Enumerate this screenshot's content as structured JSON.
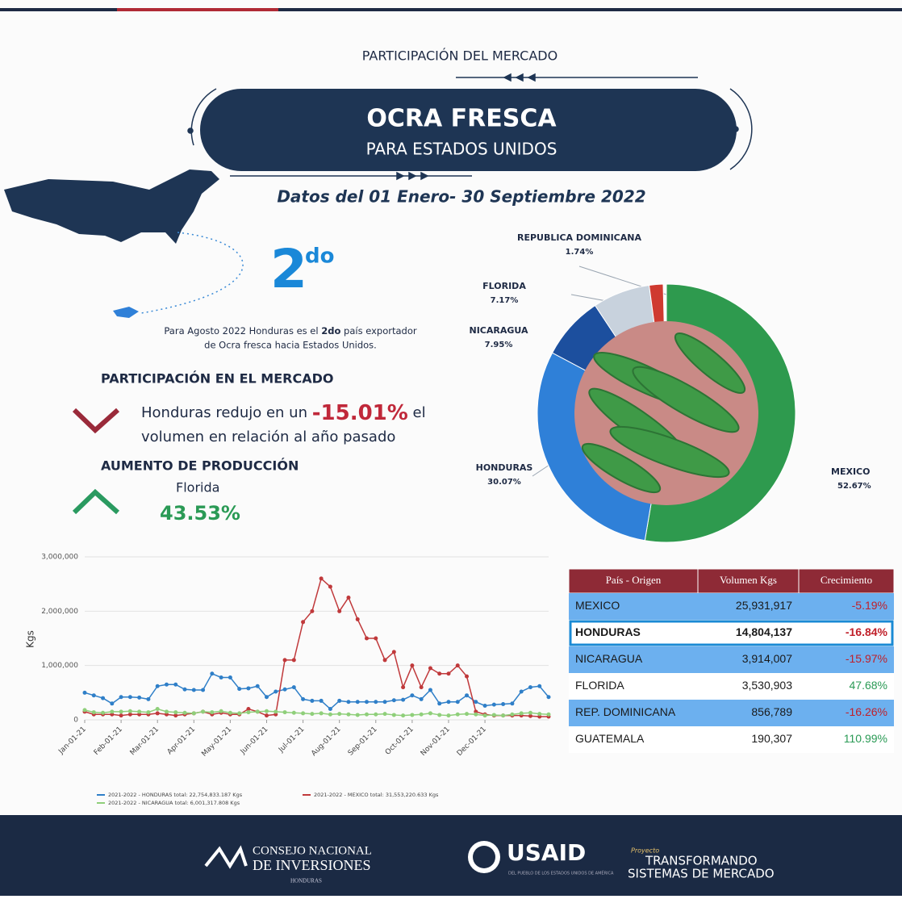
{
  "header": {
    "kicker": "PARTICIPACIÓN DEL MERCADO",
    "title": "OCRA FRESCA",
    "subtitle": "PARA ESTADOS UNIDOS",
    "date_range": "Datos del 01 Enero- 30 Septiembre 2022"
  },
  "rank": {
    "number": "2",
    "suffix": "do",
    "text_before": "Para Agosto 2022 Honduras es el ",
    "text_bold": "2do",
    "text_after": " país exportador",
    "text_line2": "de Ocra fresca hacia Estados Unidos."
  },
  "market_share": {
    "heading": "PARTICIPACIÓN EN EL MERCADO",
    "text_before": "Honduras redujo en un ",
    "change": "-15.01%",
    "text_after": " el",
    "text_line2": "volumen en relación al año pasado"
  },
  "production": {
    "heading": "AUMENTO DE PRODUCCIÓN",
    "label": "Florida",
    "value": "43.53%"
  },
  "chart_data": [
    {
      "type": "pie",
      "donut": true,
      "categories": [
        "MEXICO",
        "HONDURAS",
        "NICARAGUA",
        "FLORIDA",
        "REPUBLICA DOMINICANA"
      ],
      "values": [
        52.67,
        30.07,
        7.95,
        7.17,
        1.74
      ],
      "value_labels": [
        "52.67%",
        "30.07%",
        "7.95%",
        "7.17%",
        "1.74%"
      ],
      "colors": [
        "#2e9a4e",
        "#2f80d8",
        "#1c4f9e",
        "#c8d2dd",
        "#cf3a30"
      ]
    },
    {
      "type": "line",
      "y_label": "Kgs",
      "categories": [
        "Jan-01-21",
        null,
        null,
        null,
        "Feb-01-21",
        null,
        null,
        null,
        "Mar-01-21",
        null,
        null,
        null,
        "Apr-01-21",
        null,
        null,
        null,
        "May-01-21",
        null,
        null,
        null,
        "Jun-01-21",
        null,
        null,
        null,
        "Jul-01-21",
        null,
        null,
        null,
        "Aug-01-21",
        null,
        null,
        null,
        "Sep-01-21",
        null,
        null,
        null,
        "Oct-01-21",
        null,
        null,
        null,
        "Nov-01-21",
        null,
        null,
        null,
        "Dec-01-21",
        null,
        null,
        null,
        null,
        null,
        null,
        null
      ],
      "ylim": [
        0,
        3000000
      ],
      "yticks": [
        0,
        {
          "value": 1000000,
          "label": "1,000,000"
        },
        {
          "value": 2000000,
          "label": "2,000,000"
        },
        {
          "value": 3000000,
          "label": "3,000,000"
        }
      ],
      "grid": true,
      "series": [
        {
          "name": "2021-2022 - HONDURAS total: 22,754,833.187 Kgs",
          "color": "#2f7fc8",
          "values": [
            500000,
            450000,
            400000,
            300000,
            420000,
            420000,
            410000,
            380000,
            620000,
            650000,
            650000,
            560000,
            550000,
            550000,
            850000,
            780000,
            780000,
            570000,
            580000,
            620000,
            420000,
            520000,
            560000,
            600000,
            380000,
            350000,
            350000,
            200000,
            350000,
            330000,
            330000,
            330000,
            330000,
            330000,
            360000,
            370000,
            450000,
            380000,
            550000,
            300000,
            330000,
            330000,
            450000,
            330000,
            260000,
            280000,
            290000,
            300000,
            520000,
            600000,
            620000,
            420000
          ]
        },
        {
          "name": "2021-2022 - MEXICO total: 31,553,220.633 Kgs",
          "color": "#c0393b",
          "values": [
            150000,
            100000,
            100000,
            100000,
            80000,
            100000,
            100000,
            100000,
            120000,
            100000,
            80000,
            100000,
            120000,
            150000,
            100000,
            130000,
            100000,
            100000,
            200000,
            150000,
            80000,
            100000,
            1100000,
            1100000,
            1800000,
            2000000,
            2600000,
            2450000,
            2000000,
            2250000,
            1850000,
            1500000,
            1500000,
            1100000,
            1250000,
            600000,
            1000000,
            600000,
            950000,
            850000,
            850000,
            1000000,
            800000,
            150000,
            100000,
            80000,
            80000,
            80000,
            80000,
            70000,
            60000,
            60000
          ]
        },
        {
          "name": "2021-2022 - NICARAGUA total: 6,001,317.808 Kgs",
          "color": "#8fcf7a",
          "values": [
            180000,
            140000,
            130000,
            150000,
            150000,
            160000,
            150000,
            140000,
            200000,
            150000,
            140000,
            130000,
            120000,
            150000,
            140000,
            160000,
            130000,
            120000,
            140000,
            150000,
            160000,
            150000,
            140000,
            130000,
            120000,
            110000,
            120000,
            100000,
            110000,
            100000,
            90000,
            100000,
            100000,
            110000,
            90000,
            80000,
            90000,
            100000,
            120000,
            90000,
            80000,
            100000,
            110000,
            100000,
            80000,
            90000,
            80000,
            100000,
            120000,
            130000,
            110000,
            100000
          ]
        }
      ]
    }
  ],
  "table": {
    "columns": [
      "País - Origen",
      "Volumen Kgs",
      "Crecimiento"
    ],
    "rows": [
      [
        "MEXICO",
        "25,931,917",
        "-5.19%"
      ],
      [
        "HONDURAS",
        "14,804,137",
        "-16.84%"
      ],
      [
        "NICARAGUA",
        "3,914,007",
        "-15.97%"
      ],
      [
        "FLORIDA",
        "3,530,903",
        "47.68%"
      ],
      [
        "REP. DOMINICANA",
        "856,789",
        "-16.26%"
      ],
      [
        "GUATEMALA",
        "190,307",
        "110.99%"
      ]
    ]
  },
  "footer": {
    "cni_line1": "CONSEJO NACIONAL",
    "cni_line2": "DE INVERSIONES",
    "cni_line3": "HONDURAS",
    "usaid": "USAID",
    "usaid_small": "DEL PUEBLO DE LOS ESTADOS UNIDOS DE AMÉRICA",
    "project_kicker": "Proyecto",
    "project_line1": "TRANSFORMANDO",
    "project_line2": "SISTEMAS DE MERCADO"
  }
}
